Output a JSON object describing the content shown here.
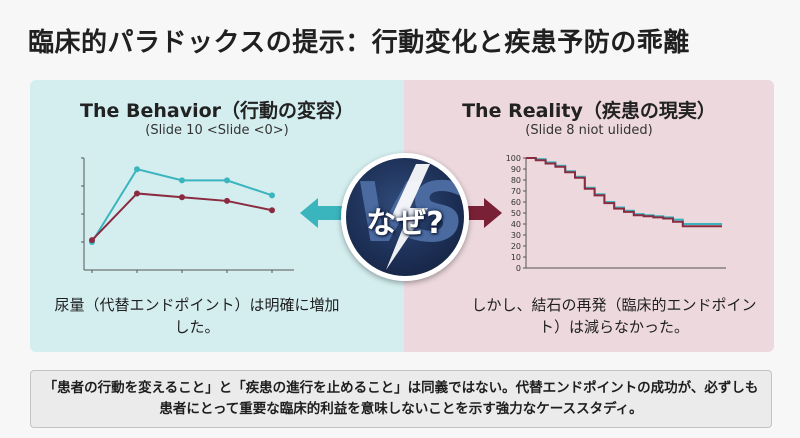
{
  "title": "臨床的パラドックスの提示：行動変化と疾患予防の乖離",
  "left_panel": {
    "heading": "The Behavior（行動の変容）",
    "subheading": "(Slide 10 <Slide <0>)",
    "caption": "尿量（代替エンドポイント）は明確に増加した。",
    "colors": {
      "background": "#d4eef0",
      "series_a": "#3bb5bd",
      "series_b": "#8a2b40"
    }
  },
  "right_panel": {
    "heading": "The Reality（疾患の現実）",
    "subheading": "(Slide 8 niot ulided)",
    "caption": "しかし、結石の再発（臨床的エンドポイント）は減らなかった。",
    "colors": {
      "background": "#ecd8dd",
      "series_a": "#3bb5bd",
      "series_b": "#8a2b40"
    }
  },
  "vs_badge": {
    "letters": "VS",
    "text": "なぜ?",
    "icon": "lightning-bolt-icon",
    "colors": {
      "badge": "#1b2d52",
      "left_arrow": "#3bb5bd",
      "right_arrow": "#7a2036"
    }
  },
  "bottom_note": "「患者の行動を変えること」と「疾患の進行を止めること」は同義ではない。代替エンドポイントの成功が、必ずしも患者にとって重要な臨床的利益を意味しないことを示す強力なケーススタディ。",
  "chart_data": [
    {
      "type": "line",
      "x": [
        1,
        2,
        3,
        4,
        5
      ],
      "series": [
        {
          "values": [
            1.5,
            5.4,
            4.8,
            4.8,
            4.0
          ],
          "color": "#3bb5bd"
        },
        {
          "values": [
            1.6,
            4.1,
            3.9,
            3.7,
            3.2
          ],
          "color": "#8a2b40"
        }
      ],
      "ylim": [
        0,
        6
      ],
      "grid": false
    },
    {
      "type": "line",
      "x": [
        0,
        5,
        10,
        15,
        20,
        25,
        30,
        35,
        40,
        45,
        50,
        55,
        60,
        65,
        70,
        75,
        80,
        85,
        90,
        95,
        100
      ],
      "series": [
        {
          "values": [
            100,
            99,
            96,
            93,
            88,
            83,
            73,
            67,
            60,
            55,
            52,
            49,
            48,
            47,
            46,
            44,
            40,
            40,
            40,
            40,
            40
          ],
          "color": "#3bb5bd"
        },
        {
          "values": [
            100,
            98,
            95,
            92,
            87,
            82,
            72,
            66,
            59,
            54,
            51,
            48,
            47,
            46,
            45,
            42,
            38,
            38,
            38,
            38,
            38
          ],
          "color": "#8a2b40"
        }
      ],
      "ylim": [
        0,
        100
      ],
      "yticks": [
        "0",
        "10",
        "20",
        "30",
        "40",
        "50",
        "60",
        "70",
        "80",
        "90",
        "100"
      ],
      "grid": false,
      "step": true
    }
  ]
}
